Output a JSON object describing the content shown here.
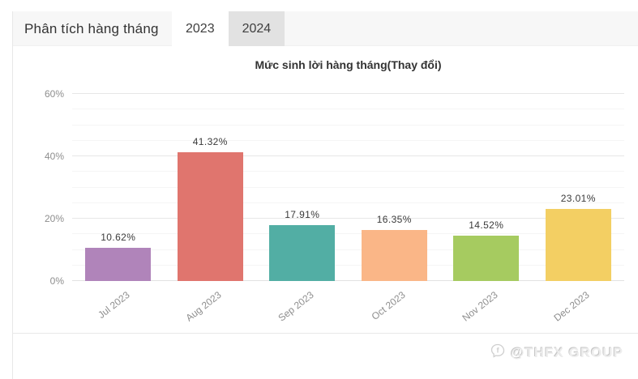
{
  "header": {
    "title": "Phân tích hàng tháng",
    "tabs": [
      {
        "label": "2023",
        "active": true
      },
      {
        "label": "2024",
        "active": false
      }
    ]
  },
  "chart_data": {
    "type": "bar",
    "title": "Mức sinh lời hàng tháng(Thay đổi)",
    "categories": [
      "Jul 2023",
      "Aug 2023",
      "Sep 2023",
      "Oct 2023",
      "Nov 2023",
      "Dec 2023"
    ],
    "values": [
      10.62,
      41.32,
      17.91,
      16.35,
      14.52,
      23.01
    ],
    "value_labels": [
      "10.62%",
      "41.32%",
      "17.91%",
      "16.35%",
      "14.52%",
      "23.01%"
    ],
    "bar_colors": [
      "#b084ba",
      "#e0756e",
      "#52aea4",
      "#fab687",
      "#a6cb60",
      "#f3cf63"
    ],
    "ylabel": "",
    "xlabel": "",
    "ylim": [
      0,
      60
    ],
    "yticks": [
      {
        "value": 0,
        "label": "0%"
      },
      {
        "value": 20,
        "label": "20%"
      },
      {
        "value": 40,
        "label": "40%"
      },
      {
        "value": 60,
        "label": "60%"
      }
    ],
    "minor_grid_step": 5,
    "grid": true,
    "legend_position": "none"
  },
  "watermark": {
    "icon": "facebook-chat-icon",
    "text": "@THFX GROUP"
  }
}
